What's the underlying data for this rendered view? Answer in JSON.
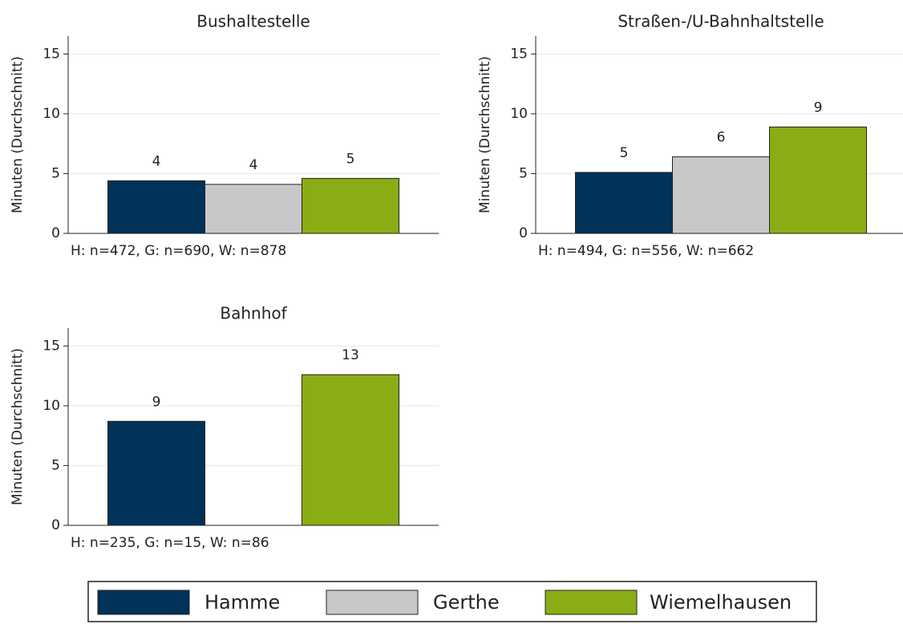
{
  "chart_data": [
    {
      "type": "bar",
      "title": "Bushaltestelle",
      "ylabel": "Minuten (Durchschnitt)",
      "note": "H: n=472, G: n=690, W: n=878",
      "ylim": [
        0,
        16.5
      ],
      "yticks": [
        0,
        5,
        10,
        15
      ],
      "grid": true,
      "series": [
        {
          "name": "Hamme",
          "color": "#00325a",
          "values": [
            4.4
          ],
          "value_labels": [
            "4"
          ]
        },
        {
          "name": "Gerthe",
          "color": "#c8c8c8",
          "values": [
            4.1
          ],
          "value_labels": [
            "4"
          ]
        },
        {
          "name": "Wiemelhausen",
          "color": "#8aac14",
          "values": [
            4.6
          ],
          "value_labels": [
            "5"
          ]
        }
      ]
    },
    {
      "type": "bar",
      "title": "Straßen-/U-Bahnhaltstelle",
      "ylabel": "Minuten (Durchschnitt)",
      "note": "H: n=494, G: n=556, W: n=662",
      "ylim": [
        0,
        16.5
      ],
      "yticks": [
        0,
        5,
        10,
        15
      ],
      "grid": true,
      "series": [
        {
          "name": "Hamme",
          "color": "#00325a",
          "values": [
            5.1
          ],
          "value_labels": [
            "5"
          ]
        },
        {
          "name": "Gerthe",
          "color": "#c8c8c8",
          "values": [
            6.4
          ],
          "value_labels": [
            "6"
          ]
        },
        {
          "name": "Wiemelhausen",
          "color": "#8aac14",
          "values": [
            8.9
          ],
          "value_labels": [
            "9"
          ]
        }
      ]
    },
    {
      "type": "bar",
      "title": "Bahnhof",
      "ylabel": "Minuten (Durchschnitt)",
      "note": "H: n=235, G: n=15, W: n=86",
      "ylim": [
        0,
        16.5
      ],
      "yticks": [
        0,
        5,
        10,
        15
      ],
      "grid": true,
      "series": [
        {
          "name": "Hamme",
          "color": "#00325a",
          "values": [
            8.7
          ],
          "value_labels": [
            "9"
          ]
        },
        {
          "name": "Gerthe",
          "color": "#c8c8c8",
          "values": [
            null
          ],
          "value_labels": [
            null
          ]
        },
        {
          "name": "Wiemelhausen",
          "color": "#8aac14",
          "values": [
            12.6
          ],
          "value_labels": [
            "13"
          ]
        }
      ]
    }
  ]
}
